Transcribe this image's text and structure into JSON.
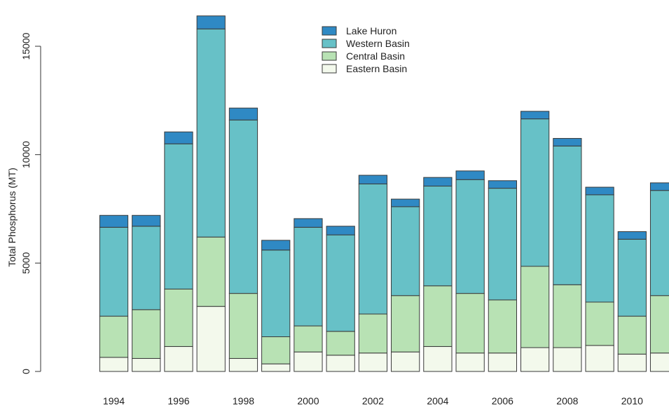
{
  "chart_data": {
    "type": "bar",
    "stacked": true,
    "title": "",
    "xlabel": "",
    "ylabel": "Total Phosphorus (MT)",
    "ylim": [
      0,
      16500
    ],
    "y_ticks": [
      0,
      5000,
      10000,
      15000
    ],
    "y_tick_labels": [
      "0",
      "5000",
      "10000",
      "15000"
    ],
    "categories": [
      "1994",
      "1995",
      "1996",
      "1997",
      "1998",
      "1999",
      "2000",
      "2001",
      "2002",
      "2003",
      "2004",
      "2005",
      "2006",
      "2007",
      "2008",
      "2009",
      "2010",
      "2011"
    ],
    "x_tick_labels": [
      "1994",
      "1996",
      "1998",
      "2000",
      "2002",
      "2004",
      "2006",
      "2008",
      "2010"
    ],
    "grid": false,
    "legend_position": "top-center",
    "series": [
      {
        "name": "Eastern Basin",
        "color": "#f3f9ec",
        "values": [
          650,
          600,
          1150,
          3000,
          600,
          350,
          900,
          750,
          850,
          900,
          1150,
          850,
          850,
          1100,
          1100,
          1200,
          800,
          850
        ]
      },
      {
        "name": "Central Basin",
        "color": "#b8e2b4",
        "values": [
          1900,
          2250,
          2650,
          3200,
          3000,
          1250,
          1200,
          1100,
          1800,
          2600,
          2800,
          2750,
          2450,
          3750,
          2900,
          2000,
          1750,
          2650
        ]
      },
      {
        "name": "Western Basin",
        "color": "#67c1c7",
        "values": [
          4100,
          3850,
          6700,
          9600,
          8000,
          4000,
          4550,
          4450,
          6000,
          4100,
          4600,
          5250,
          5150,
          6800,
          6400,
          4950,
          3550,
          4850
        ]
      },
      {
        "name": "Lake Huron",
        "color": "#2f89c4",
        "values": [
          550,
          500,
          550,
          600,
          550,
          450,
          400,
          400,
          400,
          350,
          400,
          400,
          350,
          350,
          350,
          350,
          350,
          350
        ]
      }
    ]
  }
}
